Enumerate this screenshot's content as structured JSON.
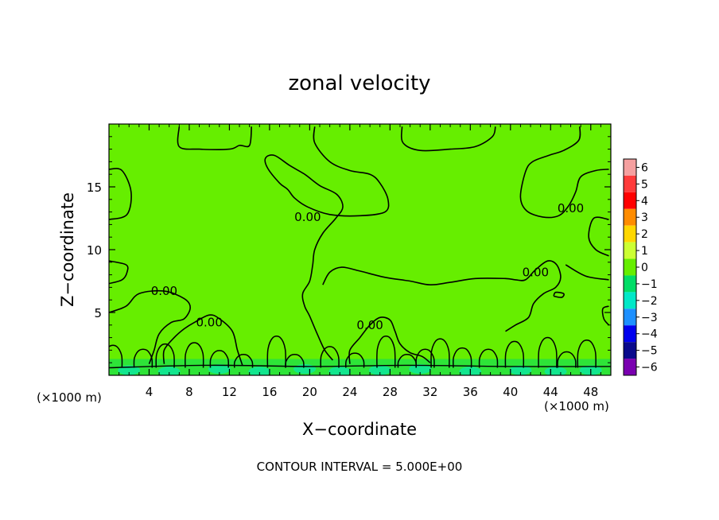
{
  "chart_data": {
    "type": "heatmap",
    "title": "zonal velocity",
    "xlabel": "X−coordinate",
    "ylabel": "Z−coordinate",
    "x_unit": "(×1000 m)",
    "y_unit": "(×1000 m)",
    "xlim": [
      0,
      50
    ],
    "ylim": [
      0,
      20
    ],
    "x_ticks": [
      4,
      8,
      12,
      16,
      20,
      24,
      28,
      32,
      36,
      40,
      44,
      48
    ],
    "y_ticks": [
      5,
      10,
      15
    ],
    "grid": false,
    "footer": "CONTOUR INTERVAL = 5.000E+00",
    "colorbar": {
      "levels": [
        6,
        5,
        4,
        3,
        2,
        1,
        0,
        -1,
        -2,
        -3,
        -4,
        -5,
        -6
      ],
      "labels": [
        "6",
        "5",
        "4",
        "3",
        "2",
        "1",
        "0",
        "−1",
        "−2",
        "−3",
        "−4",
        "−5",
        "−6"
      ],
      "colors": [
        "#f5a0a0",
        "#ff3b3b",
        "#ff0000",
        "#ff8c00",
        "#ffd700",
        "#ccff33",
        "#66ee00",
        "#00dd66",
        "#00e8c8",
        "#1e90ff",
        "#0000ee",
        "#0a0a8c",
        "#7a00b0"
      ]
    },
    "background_color": "#66ee00",
    "contour_labels": [
      {
        "text": "0.00",
        "x": 5.5,
        "y": 6.7
      },
      {
        "text": "0.00",
        "x": 10.0,
        "y": 4.2
      },
      {
        "text": "0.00",
        "x": 19.8,
        "y": 12.6
      },
      {
        "text": "0.00",
        "x": 26.0,
        "y": 4.0
      },
      {
        "text": "0.00",
        "x": 42.5,
        "y": 8.2
      },
      {
        "text": "0.00",
        "x": 46.0,
        "y": 13.3
      }
    ],
    "contours": [
      [
        [
          7,
          19.8
        ],
        [
          7,
          18.2
        ],
        [
          9,
          18.0
        ],
        [
          12,
          18.0
        ],
        [
          13,
          18.3
        ],
        [
          14,
          18.3
        ],
        [
          14.2,
          19.8
        ]
      ],
      [
        [
          20.5,
          19.8
        ],
        [
          20.5,
          18.5
        ],
        [
          22,
          17.0
        ],
        [
          24,
          16.3
        ],
        [
          26,
          16.0
        ],
        [
          27,
          15.3
        ],
        [
          27.8,
          14.0
        ],
        [
          27.5,
          13.0
        ],
        [
          25,
          12.7
        ],
        [
          22,
          12.8
        ],
        [
          19.8,
          13.4
        ],
        [
          18.5,
          14.1
        ],
        [
          17.8,
          14.8
        ],
        [
          17,
          15.3
        ],
        [
          15.8,
          16.5
        ],
        [
          15.6,
          17.3
        ],
        [
          16.5,
          17.5
        ],
        [
          18,
          16.7
        ],
        [
          19.5,
          16.0
        ],
        [
          21,
          15.1
        ],
        [
          22.7,
          14.4
        ],
        [
          23.3,
          13.4
        ],
        [
          22.6,
          12.5
        ],
        [
          21.3,
          11.3
        ],
        [
          20.5,
          10.0
        ],
        [
          20.3,
          8.8
        ],
        [
          20.0,
          7.5
        ],
        [
          19.3,
          6.5
        ],
        [
          19.5,
          5.5
        ],
        [
          20.0,
          4.7
        ],
        [
          20.8,
          3.2
        ],
        [
          21.5,
          2.0
        ],
        [
          22.3,
          1.2
        ]
      ],
      [
        [
          29.2,
          19.8
        ],
        [
          29.3,
          18.5
        ],
        [
          31,
          17.9
        ],
        [
          34,
          18.0
        ],
        [
          36.5,
          18.2
        ],
        [
          38.2,
          19.0
        ],
        [
          38.5,
          19.8
        ]
      ],
      [
        [
          0,
          16.4
        ],
        [
          1.3,
          16.3
        ],
        [
          2.2,
          14.6
        ],
        [
          1.8,
          12.8
        ],
        [
          0,
          12.4
        ]
      ],
      [
        [
          0,
          9.1
        ],
        [
          1.7,
          8.8
        ],
        [
          1.8,
          8.2
        ],
        [
          1.3,
          7.6
        ],
        [
          0,
          7.3
        ]
      ],
      [
        [
          0,
          5.0
        ],
        [
          1.7,
          5.5
        ],
        [
          3,
          6.5
        ],
        [
          5.5,
          6.7
        ],
        [
          7.5,
          6.1
        ],
        [
          8.1,
          5.4
        ],
        [
          7.5,
          4.5
        ],
        [
          6.2,
          4.2
        ],
        [
          5.0,
          3.3
        ],
        [
          4.5,
          2.0
        ],
        [
          4.0,
          0.9
        ]
      ],
      [
        [
          5.5,
          0.9
        ],
        [
          5.5,
          2.0
        ],
        [
          6.5,
          3.0
        ],
        [
          7.5,
          3.7
        ],
        [
          8.5,
          4.2
        ],
        [
          10,
          4.8
        ],
        [
          11,
          4.5
        ],
        [
          12.3,
          3.5
        ],
        [
          12.8,
          2.0
        ],
        [
          13.3,
          0.8
        ]
      ],
      [
        [
          24,
          0.9
        ],
        [
          24,
          2.0
        ],
        [
          25,
          3.0
        ],
        [
          26,
          4.0
        ],
        [
          27,
          4.6
        ],
        [
          28,
          4.4
        ],
        [
          28.5,
          3.5
        ],
        [
          29,
          2.5
        ],
        [
          30,
          1.8
        ],
        [
          31.2,
          1.5
        ],
        [
          32,
          1.0
        ]
      ],
      [
        [
          49.8,
          16.4
        ],
        [
          48.5,
          16.3
        ],
        [
          47,
          15.8
        ],
        [
          46.5,
          14.6
        ],
        [
          45.8,
          13.5
        ],
        [
          44.8,
          12.7
        ],
        [
          43.2,
          12.6
        ],
        [
          41.6,
          13.1
        ],
        [
          41,
          14.2
        ],
        [
          41.5,
          16.2
        ],
        [
          42.2,
          17.0
        ],
        [
          43.8,
          17.5
        ],
        [
          45.3,
          17.9
        ],
        [
          46.8,
          18.7
        ],
        [
          46.9,
          19.8
        ]
      ],
      [
        [
          49.8,
          12.4
        ],
        [
          48.3,
          12.5
        ],
        [
          47.8,
          11.0
        ],
        [
          48.5,
          10.0
        ],
        [
          49.8,
          9.5
        ]
      ],
      [
        [
          39.5,
          3.5
        ],
        [
          40.5,
          4.0
        ],
        [
          41.8,
          4.6
        ],
        [
          42.3,
          5.7
        ],
        [
          43.3,
          6.5
        ],
        [
          44.5,
          7.0
        ],
        [
          45,
          7.8
        ],
        [
          44.6,
          8.8
        ],
        [
          43.7,
          9.1
        ],
        [
          42.5,
          8.4
        ],
        [
          41.5,
          7.6
        ],
        [
          40.5,
          7.6
        ],
        [
          39.5,
          7.7
        ],
        [
          36.5,
          7.7
        ],
        [
          34,
          7.4
        ],
        [
          32,
          7.2
        ],
        [
          30,
          7.5
        ],
        [
          27.5,
          7.8
        ],
        [
          25,
          8.3
        ],
        [
          23.2,
          8.6
        ],
        [
          22,
          8.2
        ],
        [
          21.3,
          7.2
        ]
      ],
      [
        [
          49.8,
          5.5
        ],
        [
          49.2,
          5.3
        ],
        [
          49.3,
          4.5
        ],
        [
          49.8,
          4.0
        ]
      ],
      [
        [
          44.3,
          6.3
        ],
        [
          45.1,
          6.2
        ],
        [
          45.3,
          6.5
        ],
        [
          44.5,
          6.6
        ],
        [
          44.3,
          6.3
        ]
      ],
      [
        [
          45.5,
          8.8
        ],
        [
          47.5,
          7.9
        ],
        [
          49.8,
          7.6
        ]
      ]
    ],
    "bottom_wavelets": [
      [
        0.4,
        2.3
      ],
      [
        3.4,
        2.0
      ],
      [
        5.6,
        2.4
      ],
      [
        8.5,
        2.5
      ],
      [
        11.0,
        1.9
      ],
      [
        13.4,
        1.6
      ],
      [
        16.7,
        3.0
      ],
      [
        18.5,
        1.6
      ],
      [
        22.0,
        2.2
      ],
      [
        24.5,
        1.7
      ],
      [
        27.6,
        3.0
      ],
      [
        29.7,
        1.6
      ],
      [
        31.5,
        2.0
      ],
      [
        33.0,
        2.8
      ],
      [
        35.2,
        2.1
      ],
      [
        37.8,
        2.0
      ],
      [
        40.4,
        2.6
      ],
      [
        43.7,
        2.9
      ],
      [
        45.6,
        1.8
      ],
      [
        47.6,
        2.7
      ]
    ],
    "cool_cells": [
      [
        2,
        0.4
      ],
      [
        6,
        0.3
      ],
      [
        11,
        0.5
      ],
      [
        15,
        0.3
      ],
      [
        19.5,
        0.5
      ],
      [
        23,
        0.3
      ],
      [
        27,
        0.4
      ],
      [
        31,
        0.5
      ],
      [
        36,
        0.3
      ],
      [
        41,
        0.4
      ],
      [
        44.5,
        0.3
      ],
      [
        48,
        0.4
      ]
    ]
  }
}
